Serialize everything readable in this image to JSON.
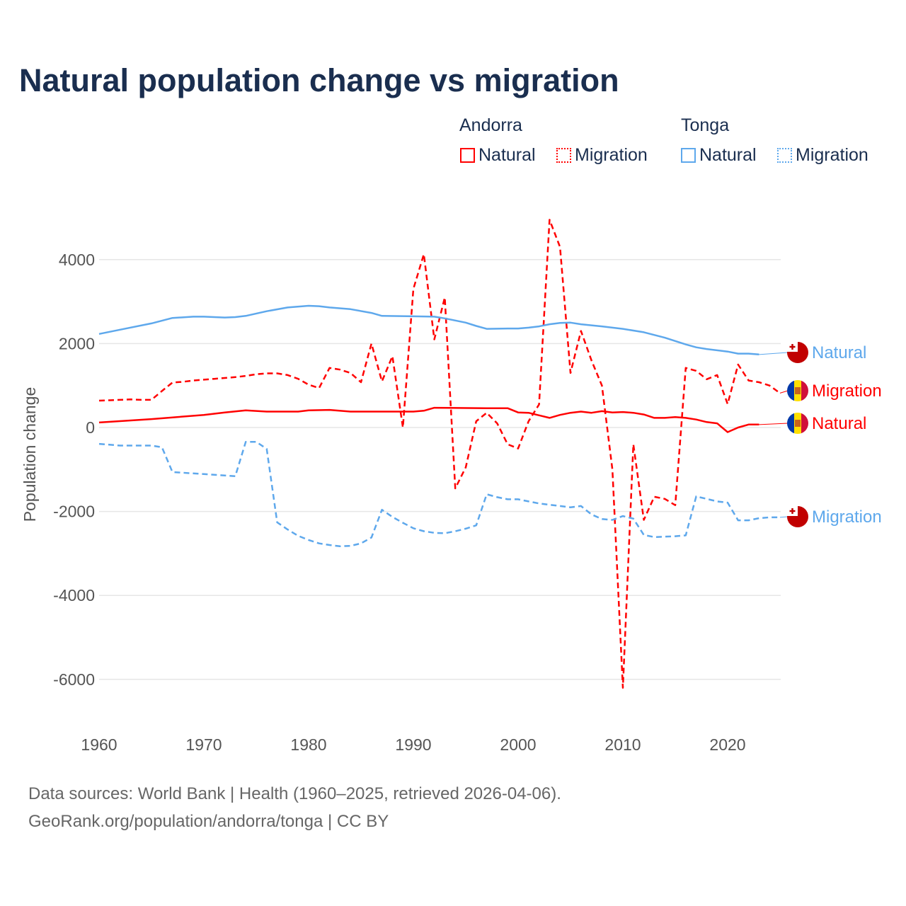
{
  "title": "Natural population change vs migration",
  "legend": {
    "groups": [
      {
        "name": "Andorra",
        "items": [
          "Natural",
          "Migration"
        ],
        "color": "#ff0000"
      },
      {
        "name": "Tonga",
        "items": [
          "Natural",
          "Migration"
        ],
        "color": "#5ea8ec"
      }
    ]
  },
  "source": {
    "line1": "Data sources: World Bank | Health (1960–2025, retrieved 2026-04-06).",
    "line2": "GeoRank.org/population/andorra/tonga | CC BY"
  },
  "chart_data": {
    "type": "line",
    "title": "Natural population change vs migration",
    "xlabel": "",
    "ylabel": "Population change",
    "xlim": [
      1960,
      2025
    ],
    "ylim": [
      -7000,
      5500
    ],
    "xticks": [
      1960,
      1970,
      1980,
      1990,
      2000,
      2010,
      2020
    ],
    "yticks": [
      -6000,
      -4000,
      -2000,
      0,
      2000,
      4000
    ],
    "grid": true,
    "legend_position": "top-right",
    "series": [
      {
        "name": "Andorra Natural",
        "label": "Natural",
        "color": "#ff0000",
        "dash": false,
        "x": [
          1960,
          1965,
          1970,
          1972,
          1974,
          1976,
          1979,
          1980,
          1982,
          1984,
          1988,
          1990,
          1991,
          1992,
          1997,
          1999,
          2000,
          2001,
          2003,
          2004,
          2005,
          2006,
          2007,
          2008,
          2009,
          2010,
          2011,
          2012,
          2013,
          2014,
          2015,
          2016,
          2017,
          2018,
          2019,
          2020,
          2021,
          2022,
          2023
        ],
        "y": [
          120,
          200,
          300,
          360,
          410,
          380,
          380,
          410,
          420,
          380,
          380,
          380,
          400,
          470,
          460,
          460,
          360,
          350,
          230,
          300,
          350,
          380,
          350,
          390,
          360,
          370,
          350,
          310,
          230,
          230,
          250,
          230,
          190,
          130,
          100,
          -110,
          0,
          70,
          70
        ]
      },
      {
        "name": "Andorra Migration",
        "label": "Migration",
        "color": "#ff0000",
        "dash": true,
        "x": [
          1960,
          1961,
          1962,
          1963,
          1964,
          1965,
          1966,
          1967,
          1968,
          1969,
          1970,
          1971,
          1972,
          1973,
          1974,
          1975,
          1976,
          1977,
          1978,
          1979,
          1980,
          1981,
          1982,
          1983,
          1984,
          1985,
          1986,
          1987,
          1988,
          1989,
          1990,
          1991,
          1992,
          1993,
          1994,
          1995,
          1996,
          1997,
          1998,
          1999,
          2000,
          2001,
          2002,
          2003,
          2004,
          2005,
          2006,
          2007,
          2008,
          2009,
          2010,
          2011,
          2012,
          2013,
          2014,
          2015,
          2016,
          2017,
          2018,
          2019,
          2020,
          2021,
          2022,
          2023,
          2024,
          2025
        ],
        "y": [
          640,
          650,
          660,
          670,
          660,
          660,
          870,
          1070,
          1090,
          1120,
          1140,
          1160,
          1180,
          1200,
          1230,
          1270,
          1290,
          1290,
          1250,
          1160,
          1020,
          940,
          1420,
          1380,
          1300,
          1080,
          2000,
          1100,
          1700,
          0,
          3300,
          4130,
          2100,
          3100,
          -1450,
          -950,
          150,
          350,
          100,
          -400,
          -500,
          150,
          550,
          4950,
          4300,
          1300,
          2300,
          1600,
          1000,
          -1000,
          -6200,
          -400,
          -2200,
          -1650,
          -1700,
          -1850,
          1420,
          1350,
          1150,
          1250,
          560,
          1500,
          1120,
          1080,
          1000,
          820
        ]
      },
      {
        "name": "Tonga Natural",
        "label": "Natural",
        "color": "#5ea8ec",
        "dash": false,
        "x": [
          1960,
          1962,
          1965,
          1967,
          1969,
          1970,
          1972,
          1973,
          1974,
          1976,
          1978,
          1980,
          1981,
          1982,
          1984,
          1986,
          1987,
          1990,
          1992,
          1993,
          1995,
          1996,
          1997,
          1999,
          2000,
          2001,
          2002,
          2003,
          2004,
          2005,
          2006,
          2008,
          2010,
          2012,
          2014,
          2016,
          2017,
          2018,
          2020,
          2021,
          2022,
          2023
        ],
        "y": [
          2230,
          2330,
          2480,
          2610,
          2640,
          2640,
          2620,
          2630,
          2660,
          2770,
          2860,
          2900,
          2890,
          2860,
          2820,
          2730,
          2660,
          2650,
          2640,
          2600,
          2500,
          2420,
          2350,
          2360,
          2360,
          2380,
          2410,
          2460,
          2490,
          2500,
          2460,
          2410,
          2350,
          2270,
          2140,
          1980,
          1910,
          1870,
          1810,
          1760,
          1760,
          1740
        ]
      },
      {
        "name": "Tonga Migration",
        "label": "Migration",
        "color": "#5ea8ec",
        "dash": true,
        "x": [
          1960,
          1962,
          1965,
          1966,
          1967,
          1970,
          1973,
          1974,
          1975,
          1976,
          1977,
          1978,
          1979,
          1980,
          1981,
          1982,
          1983,
          1984,
          1985,
          1986,
          1987,
          1988,
          1989,
          1990,
          1991,
          1992,
          1993,
          1994,
          1995,
          1996,
          1997,
          1998,
          1999,
          2000,
          2001,
          2002,
          2003,
          2004,
          2005,
          2006,
          2007,
          2008,
          2009,
          2010,
          2011,
          2012,
          2013,
          2014,
          2015,
          2016,
          2017,
          2018,
          2019,
          2020,
          2021,
          2022,
          2023,
          2024,
          2025
        ],
        "y": [
          -390,
          -430,
          -430,
          -470,
          -1060,
          -1110,
          -1160,
          -340,
          -340,
          -510,
          -2260,
          -2430,
          -2580,
          -2680,
          -2760,
          -2800,
          -2830,
          -2820,
          -2760,
          -2620,
          -1960,
          -2130,
          -2270,
          -2400,
          -2470,
          -2510,
          -2520,
          -2470,
          -2410,
          -2330,
          -1590,
          -1660,
          -1710,
          -1710,
          -1760,
          -1810,
          -1840,
          -1870,
          -1900,
          -1870,
          -2070,
          -2180,
          -2200,
          -2110,
          -2170,
          -2560,
          -2610,
          -2600,
          -2590,
          -2570,
          -1640,
          -1700,
          -1760,
          -1790,
          -2210,
          -2210,
          -2160,
          -2140,
          -2140
        ]
      }
    ]
  }
}
